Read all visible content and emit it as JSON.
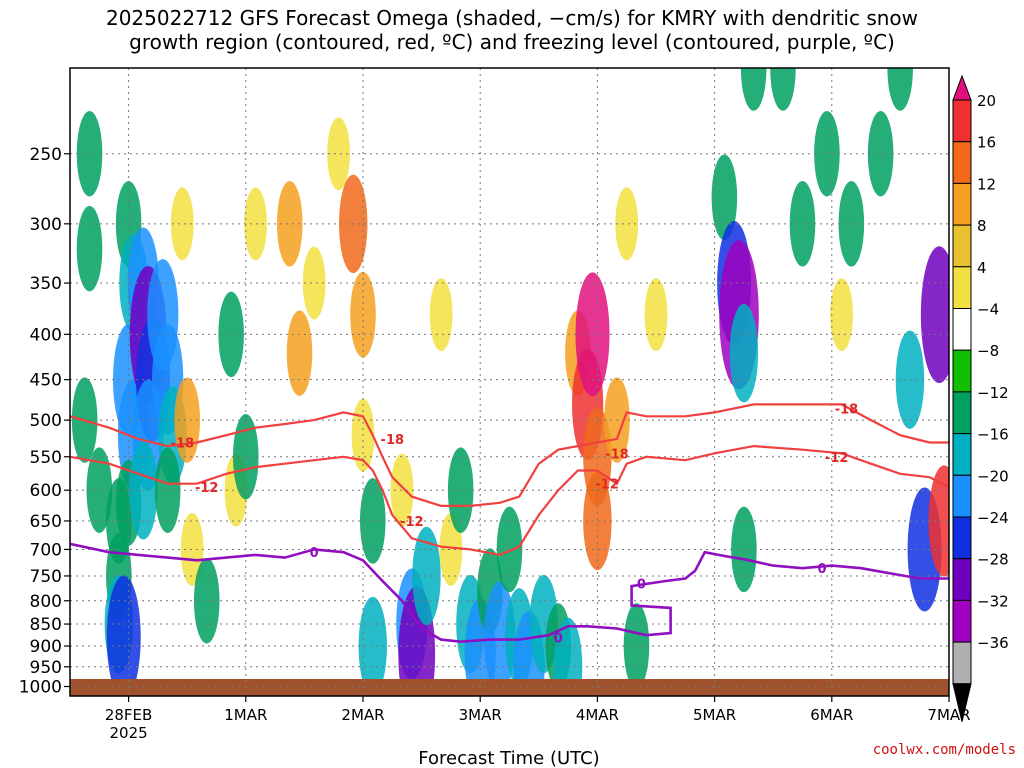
{
  "title_line1": "2025022712 GFS Forecast Omega (shaded, −cm/s) for KMRY with dendritic snow",
  "title_line2": "growth region (contoured, red, ºC) and freezing level (contoured, purple, ºC)",
  "credit": "coolwx.com/models",
  "chart_data": {
    "type": "heatmap",
    "xlabel": "Forecast Time (UTC)",
    "ylabel": "",
    "x_tick_labels": [
      {
        "t": 12,
        "label": "28FEB",
        "sub": "2025"
      },
      {
        "t": 36,
        "label": "1MAR",
        "sub": ""
      },
      {
        "t": 60,
        "label": "2MAR",
        "sub": ""
      },
      {
        "t": 84,
        "label": "3MAR",
        "sub": ""
      },
      {
        "t": 108,
        "label": "4MAR",
        "sub": ""
      },
      {
        "t": 132,
        "label": "5MAR",
        "sub": ""
      },
      {
        "t": 156,
        "label": "6MAR",
        "sub": ""
      },
      {
        "t": 180,
        "label": "7MAR",
        "sub": ""
      }
    ],
    "xlim_hours": [
      0,
      180
    ],
    "y_ticks": [
      250,
      300,
      350,
      400,
      450,
      500,
      550,
      600,
      650,
      700,
      750,
      800,
      850,
      900,
      950,
      1000
    ],
    "ylim": [
      200,
      1025
    ],
    "y_scale": "log",
    "grid": true,
    "colorbar": {
      "labels": [
        "20",
        "16",
        "12",
        "8",
        "4",
        "−4",
        "−8",
        "−12",
        "−16",
        "−20",
        "−24",
        "−28",
        "−32",
        "−36"
      ],
      "colors": [
        "#e0107f",
        "#f03030",
        "#f06a1a",
        "#f5a020",
        "#e8c030",
        "#f2e040",
        "#ffffff",
        "#10c000",
        "#00a060",
        "#00b0c0",
        "#1a90ff",
        "#1030e0",
        "#7000c0",
        "#a000c0",
        "#b0b0b0",
        "#000000"
      ]
    },
    "omega_cells": [
      [
        4,
        250,
        -8
      ],
      [
        4,
        320,
        -8
      ],
      [
        3,
        500,
        -8
      ],
      [
        6,
        600,
        -8
      ],
      [
        10,
        650,
        -8
      ],
      [
        10,
        750,
        -8
      ],
      [
        10,
        850,
        -12
      ],
      [
        12,
        300,
        -8
      ],
      [
        13,
        350,
        -12
      ],
      [
        12,
        450,
        -16
      ],
      [
        13,
        520,
        -16
      ],
      [
        12,
        620,
        -8
      ],
      [
        11,
        880,
        -20
      ],
      [
        15,
        350,
        -16
      ],
      [
        16,
        400,
        -24
      ],
      [
        17,
        450,
        -20
      ],
      [
        16,
        520,
        -16
      ],
      [
        15,
        600,
        -12
      ],
      [
        19,
        380,
        -16
      ],
      [
        20,
        450,
        -16
      ],
      [
        21,
        520,
        -12
      ],
      [
        20,
        600,
        -8
      ],
      [
        23,
        300,
        4
      ],
      [
        24,
        500,
        8
      ],
      [
        25,
        700,
        4
      ],
      [
        28,
        800,
        -8
      ],
      [
        33,
        400,
        -8
      ],
      [
        34,
        600,
        4
      ],
      [
        36,
        550,
        -8
      ],
      [
        38,
        300,
        4
      ],
      [
        45,
        300,
        8
      ],
      [
        47,
        420,
        8
      ],
      [
        50,
        350,
        4
      ],
      [
        55,
        250,
        4
      ],
      [
        58,
        300,
        12
      ],
      [
        60,
        380,
        8
      ],
      [
        60,
        520,
        4
      ],
      [
        62,
        650,
        -8
      ],
      [
        62,
        900,
        -12
      ],
      [
        68,
        600,
        4
      ],
      [
        70,
        850,
        -16
      ],
      [
        71,
        920,
        -24
      ],
      [
        73,
        750,
        -12
      ],
      [
        76,
        380,
        4
      ],
      [
        78,
        700,
        4
      ],
      [
        80,
        600,
        -8
      ],
      [
        82,
        850,
        -12
      ],
      [
        84,
        920,
        -16
      ],
      [
        86,
        780,
        -8
      ],
      [
        88,
        880,
        -16
      ],
      [
        90,
        700,
        -8
      ],
      [
        92,
        880,
        -12
      ],
      [
        94,
        950,
        -16
      ],
      [
        97,
        850,
        -12
      ],
      [
        100,
        900,
        -8
      ],
      [
        102,
        950,
        -12
      ],
      [
        104,
        420,
        8
      ],
      [
        106,
        480,
        16
      ],
      [
        107,
        400,
        20
      ],
      [
        108,
        550,
        12
      ],
      [
        108,
        650,
        12
      ],
      [
        112,
        500,
        8
      ],
      [
        114,
        300,
        4
      ],
      [
        116,
        900,
        -8
      ],
      [
        120,
        380,
        4
      ],
      [
        134,
        280,
        -8
      ],
      [
        136,
        350,
        -20
      ],
      [
        137,
        380,
        -28
      ],
      [
        138,
        420,
        -12
      ],
      [
        138,
        700,
        -8
      ],
      [
        140,
        200,
        -8
      ],
      [
        146,
        200,
        -8
      ],
      [
        150,
        300,
        -8
      ],
      [
        155,
        250,
        -8
      ],
      [
        158,
        380,
        4
      ],
      [
        160,
        300,
        -8
      ],
      [
        166,
        250,
        -8
      ],
      [
        170,
        200,
        -8
      ],
      [
        172,
        450,
        -12
      ],
      [
        175,
        700,
        -20
      ],
      [
        178,
        380,
        -24
      ],
      [
        179,
        650,
        16
      ]
    ],
    "dgz_minus18": [
      [
        0,
        495
      ],
      [
        8,
        510
      ],
      [
        14,
        525
      ],
      [
        20,
        535
      ],
      [
        26,
        530
      ],
      [
        32,
        520
      ],
      [
        38,
        510
      ],
      [
        44,
        505
      ],
      [
        50,
        500
      ],
      [
        56,
        490
      ],
      [
        60,
        495
      ],
      [
        62,
        520
      ],
      [
        64,
        550
      ],
      [
        66,
        580
      ],
      [
        70,
        610
      ],
      [
        76,
        625
      ],
      [
        82,
        625
      ],
      [
        88,
        620
      ],
      [
        92,
        610
      ],
      [
        96,
        560
      ],
      [
        100,
        540
      ],
      [
        104,
        535
      ],
      [
        108,
        530
      ],
      [
        112,
        525
      ],
      [
        114,
        490
      ],
      [
        118,
        495
      ],
      [
        126,
        495
      ],
      [
        132,
        490
      ],
      [
        140,
        480
      ],
      [
        150,
        480
      ],
      [
        158,
        480
      ],
      [
        164,
        500
      ],
      [
        170,
        520
      ],
      [
        176,
        530
      ],
      [
        180,
        530
      ]
    ],
    "dgz_minus12": [
      [
        0,
        550
      ],
      [
        8,
        560
      ],
      [
        14,
        575
      ],
      [
        20,
        590
      ],
      [
        26,
        590
      ],
      [
        32,
        575
      ],
      [
        38,
        565
      ],
      [
        44,
        560
      ],
      [
        50,
        555
      ],
      [
        56,
        550
      ],
      [
        60,
        555
      ],
      [
        62,
        570
      ],
      [
        64,
        600
      ],
      [
        66,
        640
      ],
      [
        70,
        680
      ],
      [
        76,
        695
      ],
      [
        82,
        700
      ],
      [
        88,
        710
      ],
      [
        92,
        695
      ],
      [
        96,
        640
      ],
      [
        100,
        600
      ],
      [
        104,
        570
      ],
      [
        108,
        570
      ],
      [
        112,
        590
      ],
      [
        114,
        560
      ],
      [
        118,
        550
      ],
      [
        126,
        555
      ],
      [
        132,
        545
      ],
      [
        140,
        535
      ],
      [
        150,
        540
      ],
      [
        158,
        545
      ],
      [
        164,
        560
      ],
      [
        170,
        575
      ],
      [
        176,
        580
      ],
      [
        180,
        595
      ]
    ],
    "freezing_level": [
      [
        0,
        690
      ],
      [
        8,
        705
      ],
      [
        14,
        710
      ],
      [
        20,
        715
      ],
      [
        26,
        720
      ],
      [
        32,
        715
      ],
      [
        38,
        710
      ],
      [
        44,
        715
      ],
      [
        50,
        700
      ],
      [
        56,
        705
      ],
      [
        60,
        720
      ],
      [
        64,
        760
      ],
      [
        68,
        800
      ],
      [
        72,
        860
      ],
      [
        76,
        885
      ],
      [
        80,
        890
      ],
      [
        86,
        885
      ],
      [
        92,
        885
      ],
      [
        98,
        875
      ],
      [
        102,
        855
      ],
      [
        106,
        855
      ],
      [
        112,
        860
      ],
      [
        118,
        875
      ],
      [
        123,
        870
      ],
      [
        123,
        815
      ],
      [
        115,
        810
      ],
      [
        115,
        770
      ],
      [
        122,
        760
      ],
      [
        126,
        755
      ],
      [
        128,
        740
      ],
      [
        130,
        705
      ],
      [
        134,
        712
      ],
      [
        138,
        718
      ],
      [
        144,
        730
      ],
      [
        150,
        735
      ],
      [
        156,
        730
      ],
      [
        162,
        735
      ],
      [
        168,
        745
      ],
      [
        174,
        755
      ],
      [
        180,
        755
      ]
    ],
    "contour_labels": [
      {
        "t": 23,
        "p": 530,
        "text": "-18",
        "series": "dgz"
      },
      {
        "t": 28,
        "p": 595,
        "text": "-12",
        "series": "dgz"
      },
      {
        "t": 66,
        "p": 525,
        "text": "-18",
        "series": "dgz"
      },
      {
        "t": 70,
        "p": 650,
        "text": "-12",
        "series": "dgz"
      },
      {
        "t": 112,
        "p": 545,
        "text": "-18",
        "series": "dgz"
      },
      {
        "t": 110,
        "p": 590,
        "text": "-12",
        "series": "dgz"
      },
      {
        "t": 159,
        "p": 485,
        "text": "-18",
        "series": "dgz"
      },
      {
        "t": 157,
        "p": 550,
        "text": "-12",
        "series": "dgz"
      },
      {
        "t": 50,
        "p": 705,
        "text": "0",
        "series": "frz"
      },
      {
        "t": 100,
        "p": 880,
        "text": "0",
        "series": "frz"
      },
      {
        "t": 117,
        "p": 765,
        "text": "0",
        "series": "frz"
      },
      {
        "t": 154,
        "p": 735,
        "text": "0",
        "series": "frz"
      }
    ],
    "series": [
      {
        "name": "dendritic snow growth region (contoured, red, ºC)",
        "color": "#f04040"
      },
      {
        "name": "freezing level (contoured, purple, ºC)",
        "color": "#9010c0"
      }
    ]
  }
}
